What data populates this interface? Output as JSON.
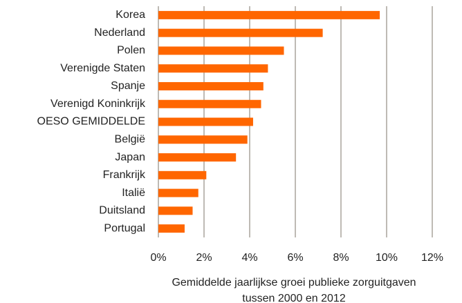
{
  "chart_data": {
    "type": "barh",
    "categories": [
      "Korea",
      "Nederland",
      "Polen",
      "Verenigde Staten",
      "Spanje",
      "Verenigd Koninkrijk",
      "OESO GEMIDDELDE",
      "België",
      "Japan",
      "Frankrijk",
      "Italië",
      "Duitsland",
      "Portugal"
    ],
    "values": [
      9.7,
      7.2,
      5.5,
      4.8,
      4.6,
      4.5,
      4.15,
      3.9,
      3.4,
      2.1,
      1.75,
      1.5,
      1.15
    ],
    "color": "#ff6600",
    "xlim": [
      0,
      12
    ],
    "xticks": [
      {
        "value": 0,
        "label": "0%"
      },
      {
        "value": 2,
        "label": "2%"
      },
      {
        "value": 4,
        "label": "4%"
      },
      {
        "value": 6,
        "label": "6%"
      },
      {
        "value": 8,
        "label": "8%"
      },
      {
        "value": 10,
        "label": "10%"
      },
      {
        "value": 12,
        "label": "12%"
      }
    ],
    "x_label": [
      "Gemiddelde jaarlijkse groei publieke zorguitgaven",
      "tussen 2000 en 2012"
    ],
    "grid": true
  }
}
